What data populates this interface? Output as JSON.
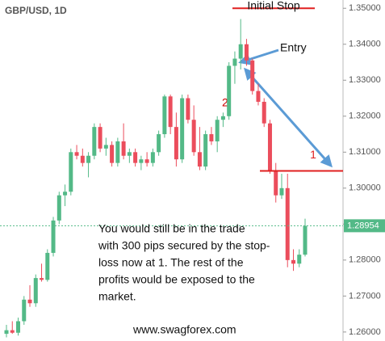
{
  "chart_data": {
    "type": "candlestick",
    "title": "GBP/USD, 1D",
    "up_color": "#53b987",
    "down_color": "#eb4d5c",
    "open": [
      1.2595,
      1.2605,
      1.2598,
      1.263,
      1.269,
      1.268,
      1.275,
      1.2745,
      1.282,
      1.291,
      1.298,
      1.299,
      1.31,
      1.309,
      1.307,
      1.309,
      1.317,
      1.311,
      1.312,
      1.307,
      1.313,
      1.309,
      1.31,
      1.307,
      1.308,
      1.307,
      1.31,
      1.315,
      1.3255,
      1.317,
      1.308,
      1.325,
      1.319,
      1.31,
      1.306,
      1.315,
      1.313,
      1.319,
      1.32,
      1.334,
      1.336,
      1.34,
      1.3355,
      1.327,
      1.324,
      1.318,
      1.305,
      1.298,
      1.3,
      1.28,
      1.279,
      1.2815
    ],
    "high": [
      1.262,
      1.263,
      1.264,
      1.27,
      1.273,
      1.276,
      1.279,
      1.283,
      1.292,
      1.299,
      1.301,
      1.311,
      1.312,
      1.311,
      1.31,
      1.318,
      1.318,
      1.314,
      1.313,
      1.314,
      1.318,
      1.311,
      1.311,
      1.309,
      1.31,
      1.311,
      1.316,
      1.326,
      1.326,
      1.321,
      1.326,
      1.326,
      1.323,
      1.317,
      1.316,
      1.317,
      1.32,
      1.321,
      1.335,
      1.338,
      1.347,
      1.3415,
      1.336,
      1.329,
      1.325,
      1.319,
      1.307,
      1.304,
      1.304,
      1.283,
      1.283,
      1.2915
    ],
    "low": [
      1.2585,
      1.2595,
      1.259,
      1.262,
      1.267,
      1.267,
      1.274,
      1.274,
      1.281,
      1.29,
      1.295,
      1.298,
      1.308,
      1.306,
      1.303,
      1.308,
      1.31,
      1.309,
      1.306,
      1.306,
      1.308,
      1.307,
      1.306,
      1.305,
      1.306,
      1.306,
      1.309,
      1.314,
      1.315,
      1.306,
      1.307,
      1.318,
      1.309,
      1.305,
      1.305,
      1.312,
      1.31,
      1.317,
      1.319,
      1.329,
      1.333,
      1.334,
      1.326,
      1.323,
      1.317,
      1.304,
      1.296,
      1.297,
      1.278,
      1.277,
      1.278,
      1.281
    ],
    "close": [
      1.2605,
      1.2598,
      1.263,
      1.269,
      1.268,
      1.275,
      1.2745,
      1.282,
      1.291,
      1.298,
      1.299,
      1.31,
      1.309,
      1.307,
      1.309,
      1.317,
      1.311,
      1.312,
      1.307,
      1.313,
      1.309,
      1.31,
      1.307,
      1.308,
      1.307,
      1.31,
      1.315,
      1.3255,
      1.317,
      1.308,
      1.325,
      1.319,
      1.31,
      1.306,
      1.315,
      1.313,
      1.319,
      1.32,
      1.334,
      1.336,
      1.34,
      1.3355,
      1.327,
      1.324,
      1.318,
      1.305,
      1.298,
      1.3,
      1.28,
      1.279,
      1.2815,
      1.2895
    ],
    "ylim": [
      1.2575,
      1.3523
    ],
    "yticks": [
      {
        "value": 1.26,
        "label": "1.26000"
      },
      {
        "value": 1.27,
        "label": "1.27000"
      },
      {
        "value": 1.28,
        "label": "1.28000"
      },
      {
        "value": 1.29,
        "label": "1.29000"
      },
      {
        "value": 1.3,
        "label": "1.30000"
      },
      {
        "value": 1.31,
        "label": "1.31000"
      },
      {
        "value": 1.32,
        "label": "1.32000"
      },
      {
        "value": 1.33,
        "label": "1.33000"
      },
      {
        "value": 1.34,
        "label": "1.34000"
      },
      {
        "value": 1.35,
        "label": "1.35000"
      }
    ],
    "current_price": 1.28954,
    "levels": [
      {
        "label": "Initial Stop",
        "value": 1.35,
        "color": "#e02020"
      },
      {
        "label": "1",
        "value": 1.3048,
        "color": "#e02020"
      }
    ],
    "annotations": [
      "Entry",
      "2"
    ],
    "note_lines": [
      "You would still be in the trade",
      "with 300 pips secured by the stop-",
      "loss now at 1. The rest of the",
      "profits would be exposed to the",
      "market."
    ],
    "footer": "www.swagforex.com"
  }
}
